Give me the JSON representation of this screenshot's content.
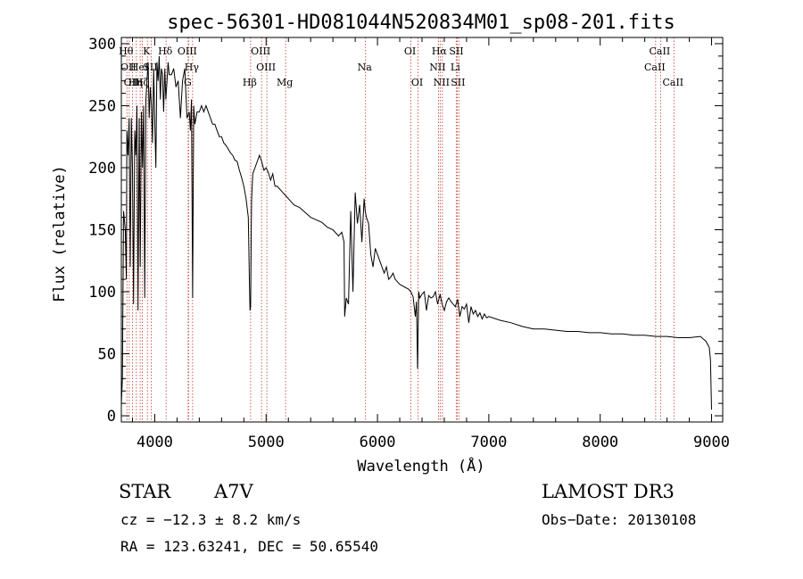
{
  "chart_data": {
    "type": "line",
    "title": "spec-56301-HD081044N520834M01_sp08-201.fits",
    "xlabel": "Wavelength (Å)",
    "ylabel": "Flux (relative)",
    "xlim": [
      3700,
      9100
    ],
    "ylim": [
      -5,
      305
    ],
    "xticks": [
      4000,
      5000,
      6000,
      7000,
      8000,
      9000
    ],
    "yticks": [
      0,
      50,
      100,
      150,
      200,
      250,
      300
    ],
    "series": [
      {
        "name": "flux",
        "x": [
          3700,
          3710,
          3720,
          3735,
          3745,
          3750,
          3760,
          3770,
          3780,
          3790,
          3800,
          3810,
          3820,
          3830,
          3840,
          3850,
          3860,
          3870,
          3880,
          3890,
          3900,
          3910,
          3920,
          3930,
          3940,
          3950,
          3960,
          3970,
          3980,
          3990,
          4000,
          4010,
          4020,
          4030,
          4040,
          4050,
          4060,
          4070,
          4080,
          4090,
          4100,
          4110,
          4120,
          4130,
          4150,
          4170,
          4190,
          4210,
          4230,
          4250,
          4270,
          4290,
          4310,
          4320,
          4330,
          4340,
          4350,
          4360,
          4380,
          4400,
          4420,
          4440,
          4460,
          4480,
          4500,
          4520,
          4540,
          4560,
          4580,
          4600,
          4620,
          4640,
          4660,
          4680,
          4700,
          4720,
          4740,
          4760,
          4780,
          4800,
          4820,
          4840,
          4850,
          4855,
          4861,
          4866,
          4870,
          4880,
          4900,
          4920,
          4940,
          4960,
          4980,
          5000,
          5020,
          5040,
          5060,
          5080,
          5100,
          5150,
          5200,
          5250,
          5300,
          5350,
          5400,
          5450,
          5500,
          5550,
          5600,
          5650,
          5680,
          5700,
          5705,
          5720,
          5740,
          5760,
          5780,
          5800,
          5820,
          5840,
          5860,
          5880,
          5890,
          5900,
          5920,
          5940,
          5960,
          5980,
          6000,
          6020,
          6040,
          6060,
          6080,
          6100,
          6120,
          6140,
          6160,
          6180,
          6200,
          6220,
          6240,
          6260,
          6280,
          6300,
          6320,
          6340,
          6350,
          6360,
          6370,
          6380,
          6400,
          6420,
          6440,
          6460,
          6480,
          6500,
          6520,
          6540,
          6563,
          6580,
          6600,
          6620,
          6640,
          6660,
          6680,
          6700,
          6720,
          6740,
          6760,
          6780,
          6800,
          6820,
          6840,
          6860,
          6880,
          6900,
          6920,
          6940,
          6960,
          6980,
          7000,
          7100,
          7200,
          7300,
          7400,
          7500,
          7600,
          7700,
          7800,
          7900,
          8000,
          8100,
          8200,
          8300,
          8400,
          8500,
          8600,
          8700,
          8800,
          8900,
          8950,
          8980,
          8990,
          9000
        ],
        "y": [
          10,
          30,
          165,
          150,
          110,
          230,
          210,
          240,
          120,
          240,
          200,
          90,
          230,
          210,
          250,
          85,
          240,
          120,
          245,
          200,
          250,
          95,
          255,
          270,
          285,
          240,
          265,
          250,
          220,
          280,
          240,
          200,
          285,
          270,
          290,
          255,
          280,
          275,
          245,
          280,
          255,
          270,
          285,
          275,
          275,
          280,
          265,
          270,
          240,
          270,
          280,
          240,
          245,
          230,
          255,
          95,
          250,
          235,
          245,
          245,
          250,
          245,
          250,
          245,
          240,
          235,
          235,
          230,
          225,
          225,
          220,
          218,
          215,
          212,
          210,
          206,
          205,
          198,
          192,
          185,
          175,
          160,
          110,
          85,
          88,
          140,
          175,
          195,
          200,
          205,
          210,
          205,
          198,
          200,
          196,
          190,
          195,
          185,
          185,
          180,
          175,
          170,
          168,
          164,
          160,
          158,
          156,
          152,
          150,
          145,
          148,
          140,
          80,
          95,
          90,
          165,
          100,
          180,
          155,
          170,
          140,
          175,
          165,
          160,
          155,
          130,
          120,
          135,
          130,
          125,
          120,
          115,
          120,
          110,
          112,
          115,
          110,
          108,
          106,
          105,
          104,
          103,
          102,
          100,
          96,
          80,
          92,
          38,
          100,
          95,
          98,
          100,
          85,
          97,
          95,
          96,
          100,
          90,
          98,
          90,
          85,
          92,
          95,
          92,
          90,
          88,
          94,
          80,
          88,
          86,
          90,
          75,
          88,
          82,
          85,
          80,
          83,
          78,
          82,
          79,
          80,
          77,
          75,
          72,
          70,
          70,
          69,
          68,
          68,
          67,
          67,
          66,
          66,
          65,
          65,
          64,
          64,
          63,
          63,
          64,
          60,
          55,
          45,
          5
        ]
      }
    ],
    "line_markers": [
      {
        "wl": 3750,
        "label": "Hθ",
        "row": 0
      },
      {
        "wl": 3771,
        "label": "OII",
        "row": 1
      },
      {
        "wl": 3800,
        "label": "OII",
        "row": 2
      },
      {
        "wl": 3835,
        "label": "Hη",
        "row": 2
      },
      {
        "wl": 3869,
        "label": "HeI",
        "row": 1
      },
      {
        "wl": 3889,
        "label": "Hζ",
        "row": 2
      },
      {
        "wl": 3934,
        "label": "K",
        "row": 0
      },
      {
        "wl": 3968,
        "label": "SII",
        "row": 1
      },
      {
        "wl": 4102,
        "label": "Hδ",
        "row": 0
      },
      {
        "wl": 4300,
        "label": "OIII",
        "row": 0
      },
      {
        "wl": 4304,
        "label": "G",
        "row": 2
      },
      {
        "wl": 4340,
        "label": "Hγ",
        "row": 1
      },
      {
        "wl": 4861,
        "label": "Hβ",
        "row": 2
      },
      {
        "wl": 4959,
        "label": "OIII",
        "row": 0
      },
      {
        "wl": 5007,
        "label": "OIII",
        "row": 1
      },
      {
        "wl": 5175,
        "label": "Mg",
        "row": 2
      },
      {
        "wl": 5893,
        "label": "Na",
        "row": 1
      },
      {
        "wl": 6300,
        "label": "OI",
        "row": 0
      },
      {
        "wl": 6364,
        "label": "OI",
        "row": 2
      },
      {
        "wl": 6548,
        "label": "NII",
        "row": 1
      },
      {
        "wl": 6563,
        "label": "Hα",
        "row": 0
      },
      {
        "wl": 6583,
        "label": "NII",
        "row": 2
      },
      {
        "wl": 6707,
        "label": "Li",
        "row": 1
      },
      {
        "wl": 6716,
        "label": "SII",
        "row": 0
      },
      {
        "wl": 6731,
        "label": "SII",
        "row": 2
      },
      {
        "wl": 8498,
        "label": "CaII",
        "row": 1
      },
      {
        "wl": 8542,
        "label": "CaII",
        "row": 0
      },
      {
        "wl": 8662,
        "label": "CaII",
        "row": 2
      }
    ],
    "marker_color": "#c0392b"
  },
  "info": {
    "class_label": "STAR",
    "subclass": "A7V",
    "survey": "LAMOST DR3",
    "cz": "cz = −12.3 ± 8.2 km/s",
    "obs_date": "Obs−Date: 20130108",
    "radec": "RA = 123.63241, DEC =  50.65540"
  }
}
